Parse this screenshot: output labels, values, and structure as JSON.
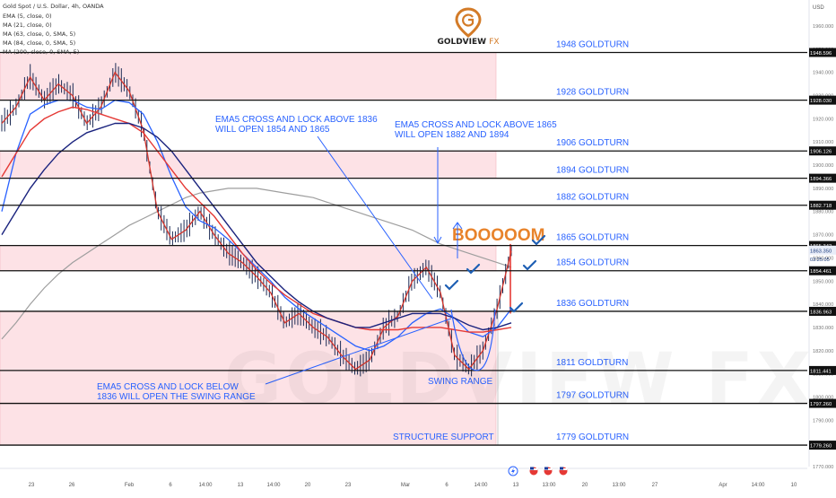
{
  "header": {
    "symbol": "Gold Spot / U.S. Dollar, 4h, OANDA",
    "indicators": [
      "EMA (5, close, 0)",
      "MA (21, close, 0)",
      "MA (63, close, 0, SMA, 5)",
      "MA (84, close, 0, SMA, 5)",
      "MA (200, close, 0, SMA, 5)"
    ]
  },
  "logo": {
    "name": "GOLDVIEW",
    "suffix": "FX"
  },
  "watermark": "GOLDVIEW FX",
  "currency": "USD",
  "countdown": "03:25:05",
  "colors": {
    "level_line": "#111111",
    "label_blue": "#2962ff",
    "zone_pink": "#fde2e6",
    "ema5": "#d3342b",
    "ma21": "#2962ff",
    "ma63": "#e53935",
    "ma84": "#1a237e",
    "ma200": "#9e9e9e",
    "boom": "#e8832b",
    "tick_mark": "#1e5fb4"
  },
  "chart_data": {
    "type": "line",
    "ylim": [
      1765,
      1970
    ],
    "y_ticks": [
      1770,
      1780,
      1790,
      1800,
      1810,
      1820,
      1830,
      1840,
      1850,
      1860,
      1870,
      1880,
      1890,
      1900,
      1910,
      1920,
      1930,
      1940,
      1950,
      1960
    ],
    "x_ticks": [
      "23",
      "26",
      "Feb",
      "6",
      "14:00",
      "13",
      "14:00",
      "20",
      "23",
      "Mar",
      "6",
      "14:00",
      "13",
      "13:00",
      "20",
      "13:00",
      "27",
      "Apr",
      "14:00",
      "10"
    ],
    "price_tags": [
      {
        "value": 1948.596,
        "label": "1948.596"
      },
      {
        "value": 1928.03,
        "label": "1928.030"
      },
      {
        "value": 1906.126,
        "label": "1906.126"
      },
      {
        "value": 1894.366,
        "label": "1894.366"
      },
      {
        "value": 1882.718,
        "label": "1882.718"
      },
      {
        "value": 1865.342,
        "label": "1865.342"
      },
      {
        "value": 1863.35,
        "label": "1863.350",
        "current": true
      },
      {
        "value": 1854.461,
        "label": "1854.461"
      },
      {
        "value": 1836.963,
        "label": "1836.963"
      },
      {
        "value": 1811.441,
        "label": "1811.441"
      },
      {
        "value": 1797.26,
        "label": "1797.260"
      },
      {
        "value": 1779.26,
        "label": "1779.260"
      }
    ],
    "levels": [
      {
        "value": 1948.596,
        "label": "1948 GOLDTURN"
      },
      {
        "value": 1928.03,
        "label": "1928 GOLDTURN"
      },
      {
        "value": 1906.126,
        "label": "1906 GOLDTURN"
      },
      {
        "value": 1894.366,
        "label": "1894 GOLDTURN"
      },
      {
        "value": 1882.718,
        "label": "1882 GOLDTURN"
      },
      {
        "value": 1865.342,
        "label": "1865 GOLDTURN"
      },
      {
        "value": 1854.461,
        "label": "1854 GOLDTURN"
      },
      {
        "value": 1836.963,
        "label": "1836 GOLDTURN"
      },
      {
        "value": 1811.441,
        "label": "1811 GOLDTURN"
      },
      {
        "value": 1797.26,
        "label": "1797 GOLDTURN"
      },
      {
        "value": 1779.26,
        "label": "1779 GOLDTURN"
      }
    ],
    "zones": [
      {
        "from": 1928.03,
        "to": 1948.596
      },
      {
        "from": 1894.366,
        "to": 1906.126
      },
      {
        "from": 1854.461,
        "to": 1865.342
      },
      {
        "from": 1797.26,
        "to": 1836.963
      },
      {
        "from": 1779.26,
        "to": 1797.26
      }
    ],
    "annotations": [
      {
        "text": "EMA5 CROSS AND LOCK ABOVE 1836\nWILL OPEN  1854 AND 1865"
      },
      {
        "text": "EMA5 CROSS AND LOCK ABOVE 1865\nWILL OPEN  1882 AND 1894"
      },
      {
        "text": "EMA5 CROSS AND LOCK BELOW\n1836 WILL OPEN THE SWING RANGE"
      },
      {
        "text": "SWING RANGE"
      },
      {
        "text": "STRUCTURE SUPPORT"
      },
      {
        "text": "BOOOOOM"
      }
    ],
    "series": [
      {
        "name": "EMA (5, close, 0)",
        "values": [
          1918,
          1925,
          1938,
          1928,
          1935,
          1930,
          1918,
          1925,
          1940,
          1932,
          1915,
          1880,
          1868,
          1872,
          1880,
          1870,
          1862,
          1858,
          1852,
          1845,
          1832,
          1836,
          1830,
          1826,
          1818,
          1812,
          1816,
          1830,
          1835,
          1850,
          1856,
          1845,
          1818,
          1812,
          1820,
          1838,
          1863
        ]
      },
      {
        "name": "MA (21, close, 0)",
        "values": [
          1880,
          1905,
          1922,
          1926,
          1928,
          1928,
          1925,
          1924,
          1928,
          1927,
          1922,
          1910,
          1895,
          1882,
          1876,
          1873,
          1868,
          1862,
          1856,
          1850,
          1843,
          1838,
          1834,
          1830,
          1826,
          1822,
          1820,
          1822,
          1826,
          1832,
          1836,
          1838,
          1834,
          1828,
          1826,
          1830,
          1838
        ]
      },
      {
        "name": "MA (63, close, 0, SMA, 5)",
        "values": [
          1895,
          1905,
          1915,
          1920,
          1923,
          1925,
          1924,
          1922,
          1920,
          1918,
          1914,
          1906,
          1898,
          1890,
          1884,
          1878,
          1870,
          1862,
          1855,
          1849,
          1844,
          1840,
          1836,
          1834,
          1832,
          1830,
          1829,
          1829,
          1829,
          1830,
          1830,
          1830,
          1829,
          1828,
          1828,
          1829,
          1830
        ]
      },
      {
        "name": "MA (84, close, 0, SMA, 5)",
        "values": [
          1870,
          1880,
          1890,
          1898,
          1905,
          1910,
          1914,
          1916,
          1918,
          1918,
          1916,
          1912,
          1906,
          1898,
          1890,
          1882,
          1874,
          1866,
          1858,
          1852,
          1846,
          1841,
          1837,
          1834,
          1832,
          1830,
          1830,
          1832,
          1834,
          1836,
          1836,
          1836,
          1834,
          1831,
          1829,
          1830,
          1832
        ]
      },
      {
        "name": "MA (200, close, 0, SMA, 5)",
        "values": [
          1825,
          1832,
          1840,
          1847,
          1853,
          1858,
          1862,
          1866,
          1870,
          1874,
          1877,
          1880,
          1883,
          1886,
          1888,
          1889,
          1890,
          1890,
          1890,
          1889,
          1888,
          1887,
          1886,
          1884,
          1882,
          1880,
          1878,
          1876,
          1874,
          1872,
          1869,
          1866,
          1864,
          1862,
          1860,
          1858,
          1856
        ]
      }
    ],
    "events": [
      "flash",
      "us-flag",
      "us-flag",
      "us-flag"
    ]
  }
}
